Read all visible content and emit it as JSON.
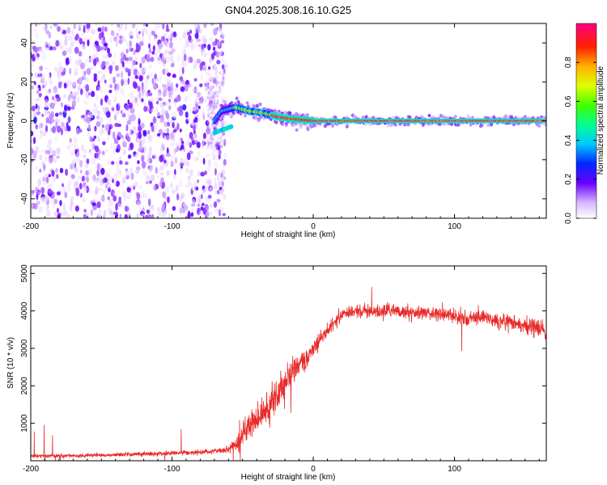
{
  "title": "GN04.2025.308.16.10.G25",
  "chart_data": [
    {
      "type": "heatmap",
      "name": "spectrogram",
      "xlabel": "Height of straight line (km)",
      "ylabel": "Frequency (Hz)",
      "xlim": [
        -200,
        165
      ],
      "ylim": [
        -50,
        50
      ],
      "xticks": [
        -200,
        -100,
        0,
        100
      ],
      "xtick_labels": [
        "-200",
        "-100",
        "0",
        "100"
      ],
      "yticks": [
        -40,
        -20,
        0,
        20,
        40
      ],
      "ytick_labels": [
        "-40",
        "-20",
        "0",
        "20",
        "40"
      ],
      "colorbar": {
        "label": "Normalized spectral amplitude",
        "range": [
          0,
          1
        ],
        "ticks": [
          0.0,
          0.2,
          0.4,
          0.6,
          0.8
        ],
        "tick_labels": [
          "0.0",
          "0.2",
          "0.4",
          "0.6",
          "0.8"
        ]
      },
      "track": {
        "description_points_km_hz": [
          [
            -70,
            0
          ],
          [
            -65,
            5
          ],
          [
            -55,
            7
          ],
          [
            -45,
            5
          ],
          [
            -35,
            4
          ],
          [
            -25,
            2
          ],
          [
            -15,
            1
          ],
          [
            0,
            0
          ],
          [
            165,
            0
          ]
        ]
      }
    },
    {
      "type": "line",
      "name": "snr",
      "xlabel": "Height of straight line (km)",
      "ylabel": "SNR (10 * v/v)",
      "xlim": [
        -200,
        165
      ],
      "ylim": [
        0,
        5200
      ],
      "xticks": [
        -200,
        -100,
        0,
        100
      ],
      "xtick_labels": [
        "-200",
        "-100",
        "0",
        "100"
      ],
      "yticks": [
        1000,
        2000,
        3000,
        4000,
        5000
      ],
      "ytick_labels": [
        "1000",
        "2000",
        "3000",
        "4000",
        "5000"
      ],
      "color": "#e82a2a",
      "envelope": {
        "x": [
          -200,
          -150,
          -100,
          -70,
          -60,
          -52,
          -48,
          -40,
          -30,
          -20,
          -10,
          0,
          10,
          20,
          30,
          50,
          80,
          100,
          120,
          140,
          160,
          165
        ],
        "mean": [
          120,
          150,
          200,
          260,
          300,
          500,
          900,
          1100,
          1500,
          2100,
          2500,
          3000,
          3500,
          3900,
          4000,
          4000,
          3950,
          3850,
          3800,
          3700,
          3500,
          3400
        ],
        "spread": [
          60,
          80,
          90,
          110,
          150,
          350,
          500,
          600,
          700,
          700,
          500,
          350,
          250,
          250,
          250,
          280,
          280,
          280,
          280,
          320,
          400,
          400
        ]
      }
    }
  ]
}
